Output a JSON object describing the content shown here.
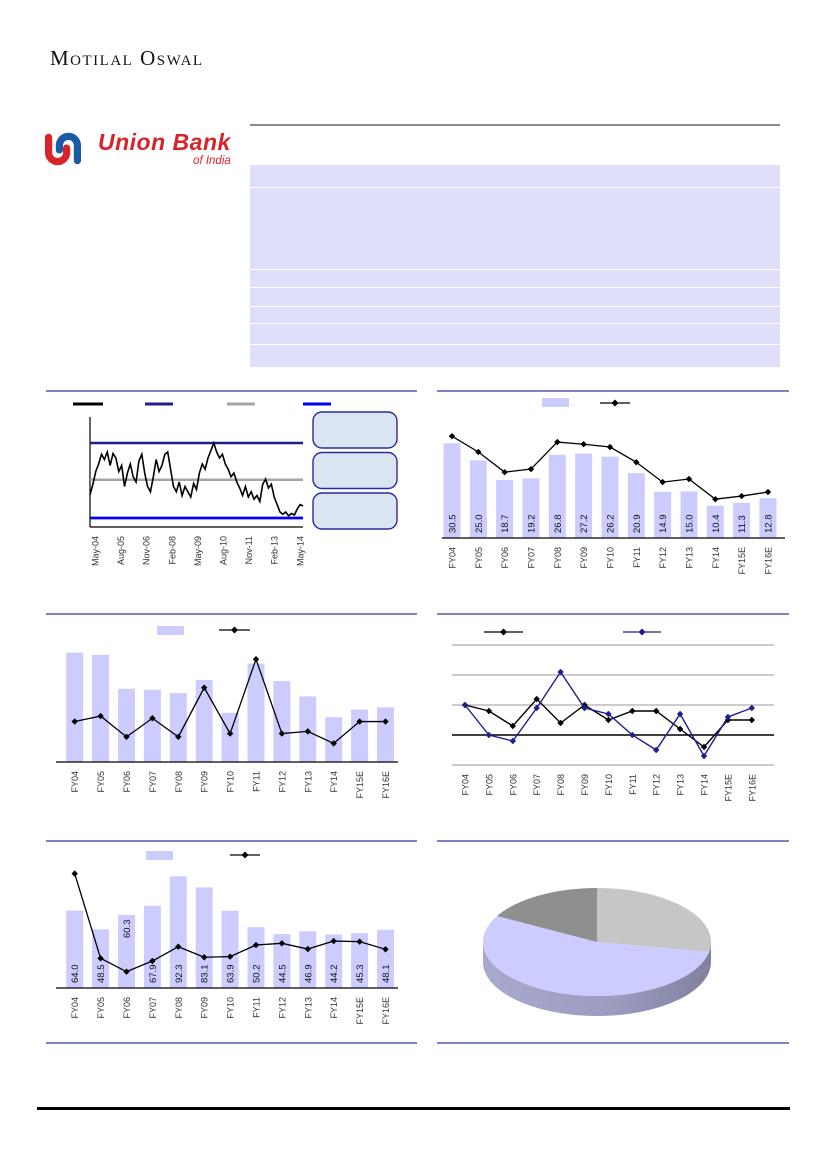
{
  "page": {
    "brand": "Motilal Oswal"
  },
  "logo": {
    "line1": "Union Bank",
    "line2": "of India"
  },
  "colors": {
    "bar_fill": "#ccccff",
    "table_fill": "#dfdff9",
    "panel_rule": "#8080c4",
    "line_black": "#000000",
    "line_navy": "#1f1f8f",
    "line_gray": "#a6a6a6",
    "line_blue": "#0000ff",
    "box_fill": "#dbe5f1",
    "box_border": "#2a2a9e",
    "pie_wall_light": "#a9a9cf",
    "pie_wall_dark": "#80809f"
  },
  "chart_data": [
    {
      "id": "price_band",
      "type": "line",
      "x_labels": [
        "May-04",
        "Aug-05",
        "Nov-06",
        "Feb-08",
        "May-09",
        "Aug-10",
        "Nov-11",
        "Feb-13",
        "May-14"
      ],
      "band_lines": {
        "top": 100,
        "mid": 51,
        "bottom": 0
      },
      "legend_colors": [
        "#000000",
        "#1f1f8f",
        "#a6a6a6",
        "#0000ff"
      ],
      "ylim": [
        0,
        100
      ],
      "values": [
        31,
        45,
        62,
        72,
        85,
        78,
        88,
        70,
        86,
        80,
        62,
        70,
        42,
        60,
        72,
        55,
        48,
        76,
        85,
        60,
        42,
        35,
        55,
        78,
        62,
        70,
        85,
        88,
        65,
        42,
        35,
        48,
        30,
        42,
        35,
        28,
        46,
        38,
        60,
        72,
        65,
        80,
        90,
        100,
        88,
        80,
        85,
        72,
        65,
        55,
        60,
        48,
        40,
        30,
        42,
        28,
        35,
        25,
        30,
        22,
        45,
        52,
        40,
        45,
        28,
        18,
        8,
        5,
        8,
        3,
        6,
        4,
        12,
        18,
        16
      ],
      "callout_boxes": 3
    },
    {
      "id": "bar_line_top_right",
      "type": "bar",
      "categories": [
        "FY04",
        "FY05",
        "FY06",
        "FY07",
        "FY08",
        "FY09",
        "FY10",
        "FY11",
        "FY12",
        "FY13",
        "FY14",
        "FY15E",
        "FY16E"
      ],
      "bar_values": [
        30.5,
        25.0,
        18.7,
        19.2,
        26.8,
        27.2,
        26.2,
        20.9,
        14.9,
        15.0,
        10.4,
        11.3,
        12.8
      ],
      "bar_labels": [
        "30.5",
        "25.0",
        "18.7",
        "19.2",
        "26.8",
        "27.2",
        "26.2",
        "20.9",
        "14.9",
        "15.0",
        "10.4",
        "11.3",
        "12.8"
      ],
      "line_values": [
        32.8,
        27.7,
        21.2,
        22.2,
        30.9,
        30.2,
        29.3,
        24.4,
        18.0,
        19.0,
        12.5,
        13.5,
        14.8
      ],
      "ylim": [
        0,
        38
      ],
      "grid": false,
      "legend_position": "top"
    },
    {
      "id": "bar_line_mid_left",
      "type": "bar",
      "categories": [
        "FY04",
        "FY05",
        "FY06",
        "FY07",
        "FY08",
        "FY09",
        "FY10",
        "FY11",
        "FY12",
        "FY13",
        "FY14",
        "FY15E",
        "FY16E"
      ],
      "bar_values": [
        100,
        98,
        67,
        66,
        63,
        75,
        45,
        90,
        74,
        60,
        41,
        48,
        50
      ],
      "line_values": [
        37,
        42,
        23,
        40,
        23,
        68,
        26,
        94,
        26,
        28,
        17,
        37,
        37
      ],
      "ylim": [
        0,
        107
      ],
      "grid": false,
      "legend_position": "top"
    },
    {
      "id": "dual_line_mid_right",
      "type": "line",
      "categories": [
        "FY04",
        "FY05",
        "FY06",
        "FY07",
        "FY08",
        "FY09",
        "FY10",
        "FY11",
        "FY12",
        "FY13",
        "FY14",
        "FY15E",
        "FY16E"
      ],
      "series": [
        {
          "name": "series-black",
          "color": "#000000",
          "values": [
            1.0,
            0.8,
            0.3,
            1.2,
            0.4,
            1.0,
            0.5,
            0.8,
            0.8,
            0.2,
            -0.4,
            0.5,
            0.5
          ]
        },
        {
          "name": "series-navy",
          "color": "#1f1f8f",
          "values": [
            1.0,
            0.0,
            -0.2,
            0.9,
            2.1,
            0.9,
            0.7,
            0.0,
            -0.5,
            0.7,
            -0.7,
            0.6,
            0.9
          ]
        }
      ],
      "ylim": [
        -1,
        3
      ],
      "grid": true,
      "gridline_step": 1,
      "legend_position": "top"
    },
    {
      "id": "bar_line_bottom_left",
      "type": "bar",
      "categories": [
        "FY04",
        "FY05",
        "FY06",
        "FY07",
        "FY08",
        "FY09",
        "FY10",
        "FY11",
        "FY12",
        "FY13",
        "FY14",
        "FY15E",
        "FY16E"
      ],
      "bar_values": [
        64.0,
        48.5,
        60.3,
        67.9,
        92.3,
        83.1,
        63.9,
        50.2,
        44.5,
        46.9,
        44.2,
        45.3,
        48.1
      ],
      "bar_labels": [
        "64.0",
        "48.5",
        "60.3",
        "67.9",
        "92.3",
        "83.1",
        "63.9",
        "50.2",
        "44.5",
        "46.9",
        "44.2",
        "45.3",
        "48.1"
      ],
      "line_values": [
        94.5,
        24.5,
        13.5,
        22.3,
        34.1,
        25.4,
        25.9,
        35.5,
        36.9,
        32.2,
        38.8,
        38.3,
        32.0
      ],
      "ylim": [
        0,
        97.5
      ],
      "grid": false,
      "legend_position": "top"
    },
    {
      "id": "pie_bottom_right",
      "type": "pie",
      "style": "3d",
      "values": [
        28,
        55,
        17
      ],
      "slice_colors": [
        "#c6c6c6",
        "#ccccff",
        "#8f8f8f"
      ]
    }
  ]
}
